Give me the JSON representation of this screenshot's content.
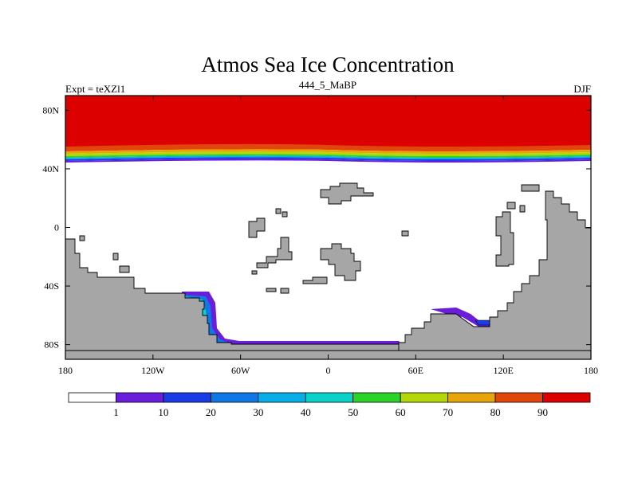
{
  "chart_data": {
    "type": "heatmap",
    "title": "Atmos Sea Ice Concentration",
    "left_string": "Expt = teXZl1",
    "center_string": "444_5_MaBP",
    "right_string": "DJF",
    "x_ticks": [
      {
        "value": -180,
        "label": "180"
      },
      {
        "value": -120,
        "label": "120W"
      },
      {
        "value": -60,
        "label": "60W"
      },
      {
        "value": 0,
        "label": "0"
      },
      {
        "value": 60,
        "label": "60E"
      },
      {
        "value": 120,
        "label": "120E"
      },
      {
        "value": 180,
        "label": "180"
      }
    ],
    "y_ticks": [
      {
        "value": 80,
        "label": "80N"
      },
      {
        "value": 40,
        "label": "40N"
      },
      {
        "value": 0,
        "label": "0"
      },
      {
        "value": -40,
        "label": "40S"
      },
      {
        "value": -80,
        "label": "80S"
      }
    ],
    "xlim": [
      -180,
      180
    ],
    "ylim": [
      -90,
      90
    ],
    "units": "%",
    "colorbar": {
      "colors": [
        "#ffffff",
        "#6a1ddb",
        "#1a3ce6",
        "#0f78e6",
        "#0aaee6",
        "#0ad2c8",
        "#2ad22a",
        "#b4d70a",
        "#e6a50a",
        "#e1460a",
        "#dc0000"
      ],
      "labels": [
        "1",
        "10",
        "20",
        "30",
        "40",
        "50",
        "60",
        "70",
        "80",
        "90"
      ]
    },
    "land_color": "#a6a6a6",
    "ice_color": "#dc0000"
  }
}
